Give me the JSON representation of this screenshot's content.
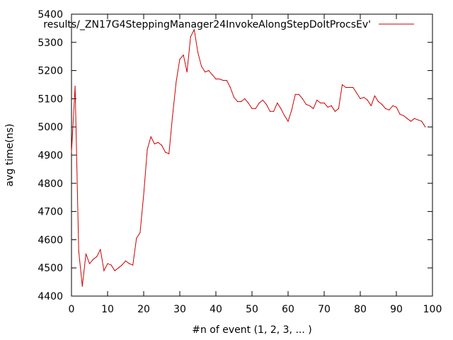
{
  "chart_data": {
    "type": "line",
    "title": "",
    "xlabel": "#n of event (1, 2, 3, ... )",
    "ylabel": "avg time(ns)",
    "xlim": [
      0,
      100
    ],
    "ylim": [
      4400,
      5400
    ],
    "xticks": [
      0,
      10,
      20,
      30,
      40,
      50,
      60,
      70,
      80,
      90,
      100
    ],
    "yticks": [
      4400,
      4500,
      4600,
      4700,
      4800,
      4900,
      5000,
      5100,
      5200,
      5300,
      5400
    ],
    "grid": false,
    "legend_position": "top-right",
    "series": [
      {
        "name": "results/_ZN17G4SteppingManager24InvokeAlongStepDoItProcsEv'",
        "color": "#cc0000",
        "x": [
          0,
          1,
          2,
          3,
          4,
          5,
          6,
          7,
          8,
          9,
          10,
          11,
          12,
          13,
          14,
          15,
          16,
          17,
          18,
          19,
          20,
          21,
          22,
          23,
          24,
          25,
          26,
          27,
          28,
          29,
          30,
          31,
          32,
          33,
          34,
          35,
          36,
          37,
          38,
          39,
          40,
          41,
          42,
          43,
          44,
          45,
          46,
          47,
          48,
          49,
          50,
          51,
          52,
          53,
          54,
          55,
          56,
          57,
          58,
          59,
          60,
          61,
          62,
          63,
          64,
          65,
          66,
          67,
          68,
          69,
          70,
          71,
          72,
          73,
          74,
          75,
          76,
          77,
          78,
          79,
          80,
          81,
          82,
          83,
          84,
          85,
          86,
          87,
          88,
          89,
          90,
          91,
          92,
          93,
          94,
          95,
          96,
          97,
          98
        ],
        "y": [
          4910,
          5145,
          4560,
          4435,
          4550,
          4515,
          4530,
          4540,
          4565,
          4490,
          4515,
          4510,
          4490,
          4500,
          4510,
          4525,
          4515,
          4510,
          4605,
          4625,
          4760,
          4920,
          4965,
          4940,
          4945,
          4935,
          4910,
          4905,
          5040,
          5160,
          5240,
          5255,
          5195,
          5320,
          5345,
          5265,
          5215,
          5195,
          5200,
          5185,
          5170,
          5170,
          5165,
          5165,
          5140,
          5105,
          5090,
          5090,
          5100,
          5085,
          5065,
          5065,
          5085,
          5095,
          5080,
          5055,
          5055,
          5085,
          5065,
          5040,
          5020,
          5060,
          5115,
          5115,
          5100,
          5080,
          5075,
          5065,
          5095,
          5085,
          5085,
          5070,
          5075,
          5055,
          5065,
          5150,
          5140,
          5140,
          5140,
          5120,
          5100,
          5105,
          5095,
          5075,
          5110,
          5090,
          5080,
          5065,
          5060,
          5075,
          5070,
          5045,
          5040,
          5030,
          5020,
          5030,
          5025,
          5020,
          5000
        ]
      }
    ]
  }
}
